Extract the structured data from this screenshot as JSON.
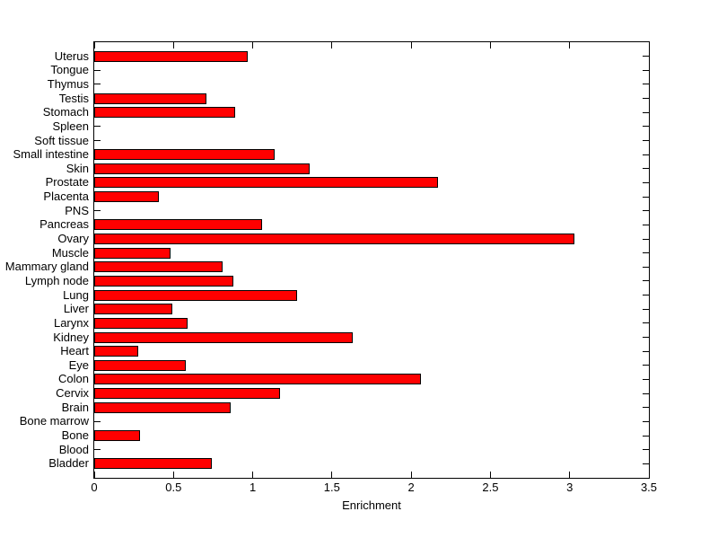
{
  "figure": {
    "background_color": "#ffffff",
    "axis_color": "#000000"
  },
  "chart_data": {
    "type": "bar",
    "orientation": "horizontal",
    "title": "",
    "xlabel": "Enrichment",
    "ylabel": "",
    "xlim": [
      0,
      3.5
    ],
    "xticks": [
      0,
      0.5,
      1,
      1.5,
      2,
      2.5,
      3,
      3.5
    ],
    "xtick_labels": [
      "0",
      "0.5",
      "1",
      "1.5",
      "2",
      "2.5",
      "3",
      "3.5"
    ],
    "grid": false,
    "legend_position": "none",
    "bar_color": "#ff0000",
    "bar_edge_color": "#000000",
    "categories": [
      "Uterus",
      "Tongue",
      "Thymus",
      "Testis",
      "Stomach",
      "Spleen",
      "Soft tissue",
      "Small intestine",
      "Skin",
      "Prostate",
      "Placenta",
      "PNS",
      "Pancreas",
      "Ovary",
      "Muscle",
      "Mammary gland",
      "Lymph node",
      "Lung",
      "Liver",
      "Larynx",
      "Kidney",
      "Heart",
      "Eye",
      "Colon",
      "Cervix",
      "Brain",
      "Bone marrow",
      "Bone",
      "Blood",
      "Bladder"
    ],
    "values": [
      0.97,
      0,
      0,
      0.71,
      0.89,
      0,
      0,
      1.14,
      1.36,
      2.17,
      0.41,
      0,
      1.06,
      3.03,
      0.48,
      0.81,
      0.88,
      1.28,
      0.49,
      0.59,
      1.63,
      0.28,
      0.58,
      2.06,
      1.17,
      0.86,
      0,
      0.29,
      0,
      0.74
    ]
  }
}
